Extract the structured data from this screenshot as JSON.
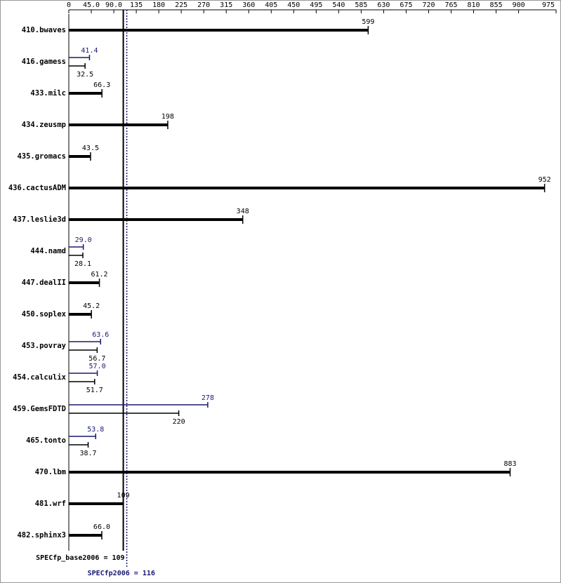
{
  "chart_data": {
    "type": "hbar",
    "categories": [
      "410.bwaves",
      "416.gamess",
      "433.milc",
      "434.zeusmp",
      "435.gromacs",
      "436.cactusADM",
      "437.leslie3d",
      "444.namd",
      "447.dealII",
      "450.soplex",
      "453.povray",
      "454.calculix",
      "459.GemsFDTD",
      "465.tonto",
      "470.lbm",
      "481.wrf",
      "482.sphinx3"
    ],
    "series": [
      {
        "color": "#000000",
        "values": [
          599,
          32.5,
          66.3,
          198,
          43.5,
          952,
          348,
          28.1,
          61.2,
          45.2,
          56.7,
          51.7,
          220,
          38.7,
          883,
          109,
          66.0
        ],
        "value_labels": [
          "599",
          "32.5",
          "66.3",
          "198",
          "43.5",
          "952",
          "348",
          "28.1",
          "61.2",
          "45.2",
          "56.7",
          "51.7",
          "220",
          "38.7",
          "883",
          "109",
          "66.0"
        ]
      },
      {
        "color": "#191970",
        "values": [
          null,
          41.4,
          null,
          null,
          null,
          null,
          null,
          29.0,
          null,
          null,
          63.6,
          57.0,
          278,
          53.8,
          null,
          null,
          null
        ],
        "value_labels": [
          null,
          "41.4",
          null,
          null,
          null,
          null,
          null,
          "29.0",
          null,
          null,
          "63.6",
          "57.0",
          "278",
          "53.8",
          null,
          null,
          null
        ]
      }
    ],
    "xlim": [
      0,
      975
    ],
    "xticks": [
      0,
      {
        "value": 45,
        "label": "45.0"
      },
      {
        "value": 90,
        "label": "90.0"
      },
      135,
      180,
      225,
      270,
      315,
      360,
      405,
      450,
      495,
      540,
      585,
      630,
      675,
      720,
      765,
      810,
      855,
      900,
      975
    ],
    "reference_lines": [
      {
        "value": 109,
        "label": "SPECfp_base2006 = 109",
        "color": "#000000",
        "style": "solid"
      },
      {
        "value": 116,
        "label": "SPECfp2006 = 116",
        "color": "#191970",
        "style": "dotted"
      }
    ]
  }
}
